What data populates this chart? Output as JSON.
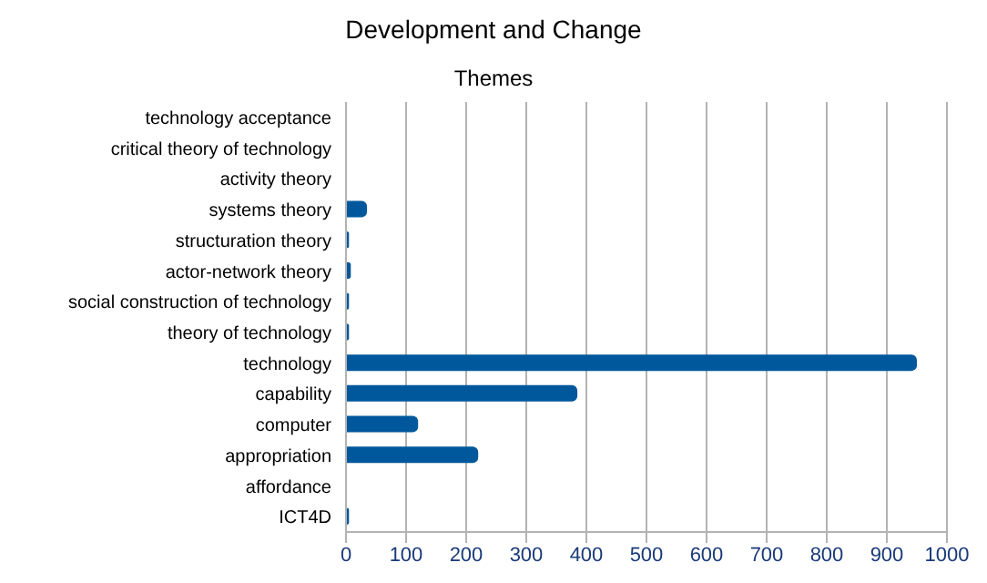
{
  "chart_data": {
    "type": "bar",
    "title": "Development and Change",
    "subtitle": "Themes",
    "orientation": "horizontal",
    "categories": [
      "technology acceptance",
      "critical theory of technology",
      "activity theory",
      "systems theory",
      "structuration theory",
      "actor-network theory",
      "social construction of technology",
      "theory of technology",
      "technology",
      "capability",
      "computer",
      "appropriation",
      "affordance",
      "ICT4D"
    ],
    "values": [
      0,
      0,
      0,
      35,
      5,
      8,
      5,
      5,
      950,
      385,
      120,
      220,
      0,
      5
    ],
    "color": "#00589c",
    "xlim": [
      0,
      1000
    ],
    "xticks": [
      0,
      100,
      200,
      300,
      400,
      500,
      600,
      700,
      800,
      900,
      1000
    ],
    "grid": "x"
  }
}
